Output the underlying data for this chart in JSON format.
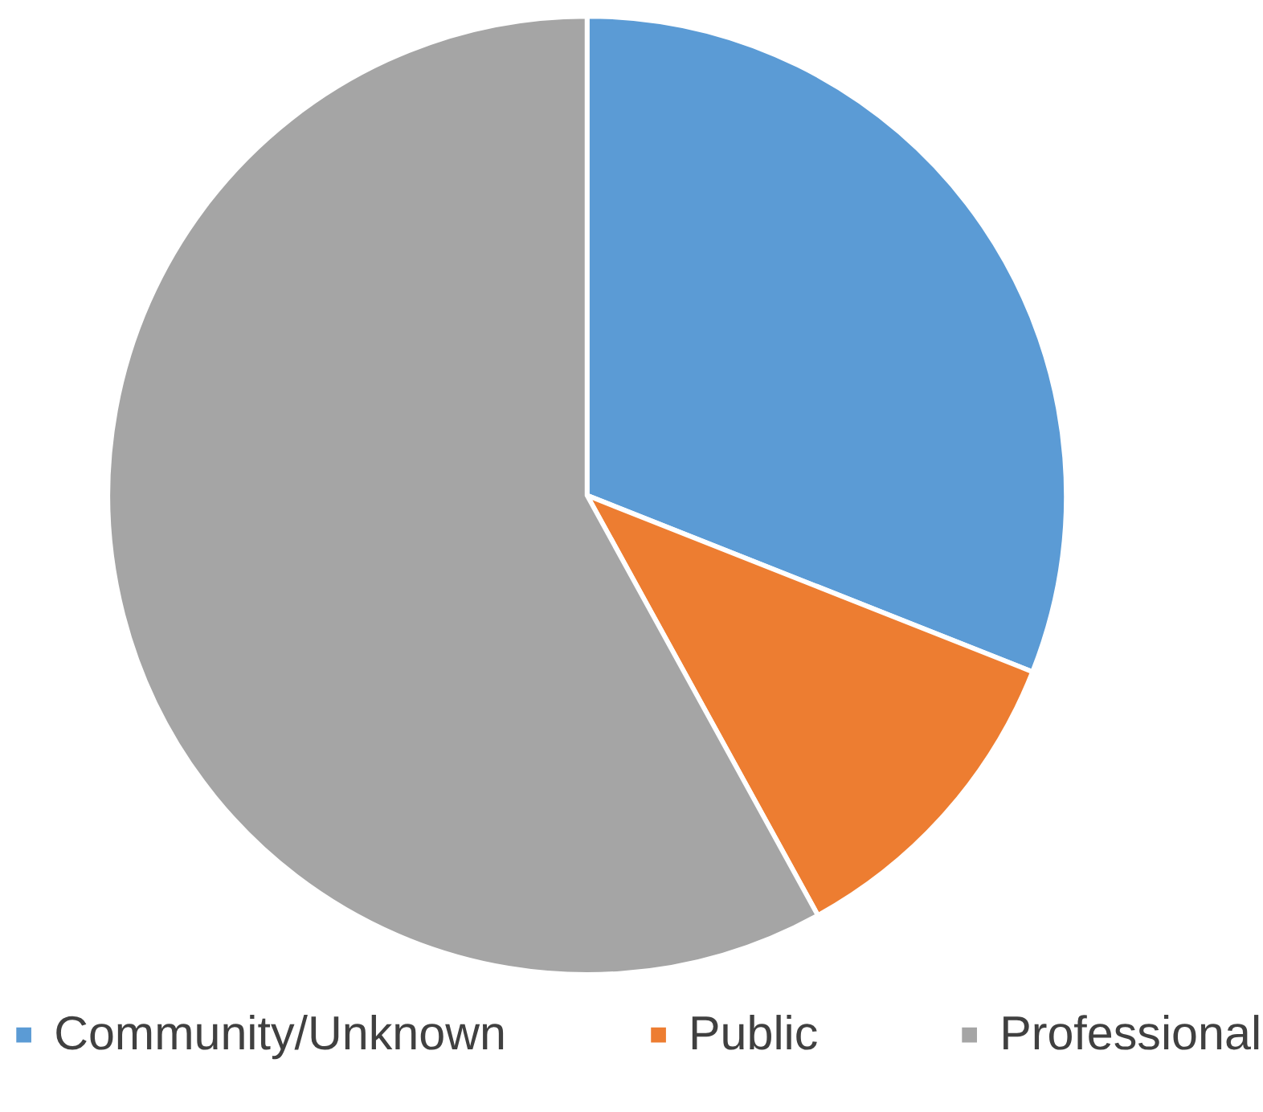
{
  "chart_data": {
    "type": "pie",
    "categories": [
      "Community/Unknown",
      "Public",
      "Professional"
    ],
    "values": [
      31,
      11,
      58
    ],
    "colors": [
      "#5b9bd5",
      "#ed7d31",
      "#a5a5a5"
    ],
    "legend": "bottom"
  }
}
